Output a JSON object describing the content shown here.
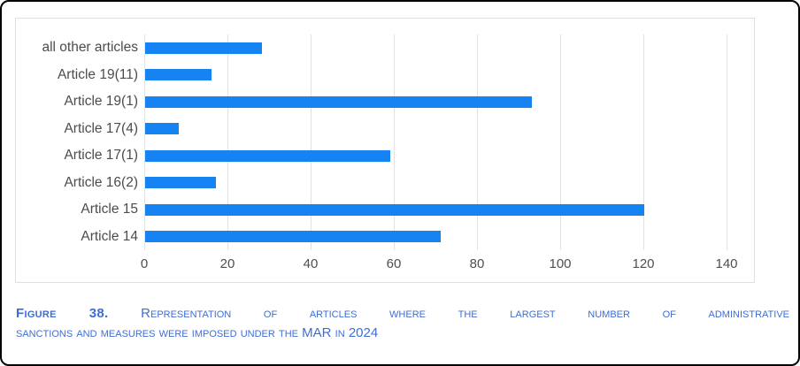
{
  "chart_data": {
    "type": "bar",
    "orientation": "horizontal",
    "title": "",
    "xlabel": "",
    "ylabel": "",
    "categories": [
      "all other articles",
      "Article 19(11)",
      "Article 19(1)",
      "Article 17(4)",
      "Article 17(1)",
      "Article 16(2)",
      "Article 15",
      "Article 14"
    ],
    "values": [
      28,
      16,
      93,
      8,
      59,
      17,
      120,
      71
    ],
    "x_ticks": [
      0,
      20,
      40,
      60,
      80,
      100,
      120,
      140
    ],
    "xlim": [
      0,
      147
    ],
    "grid": "vertical-only",
    "legend": "none",
    "bar_color": "#1583f2"
  },
  "caption": {
    "label": "Figure 38.",
    "line1": " Representation of articles where the largest number of administrative",
    "line2": "sanctions and measures were imposed under the MAR in 2024"
  },
  "colors": {
    "bar": "#1583f2",
    "caption_text": "#3f6dd6",
    "axis_text": "#4c4c4c",
    "gridline": "#e2e2e2",
    "chart_border": "#e0e0e0",
    "frame_border": "#000000"
  }
}
